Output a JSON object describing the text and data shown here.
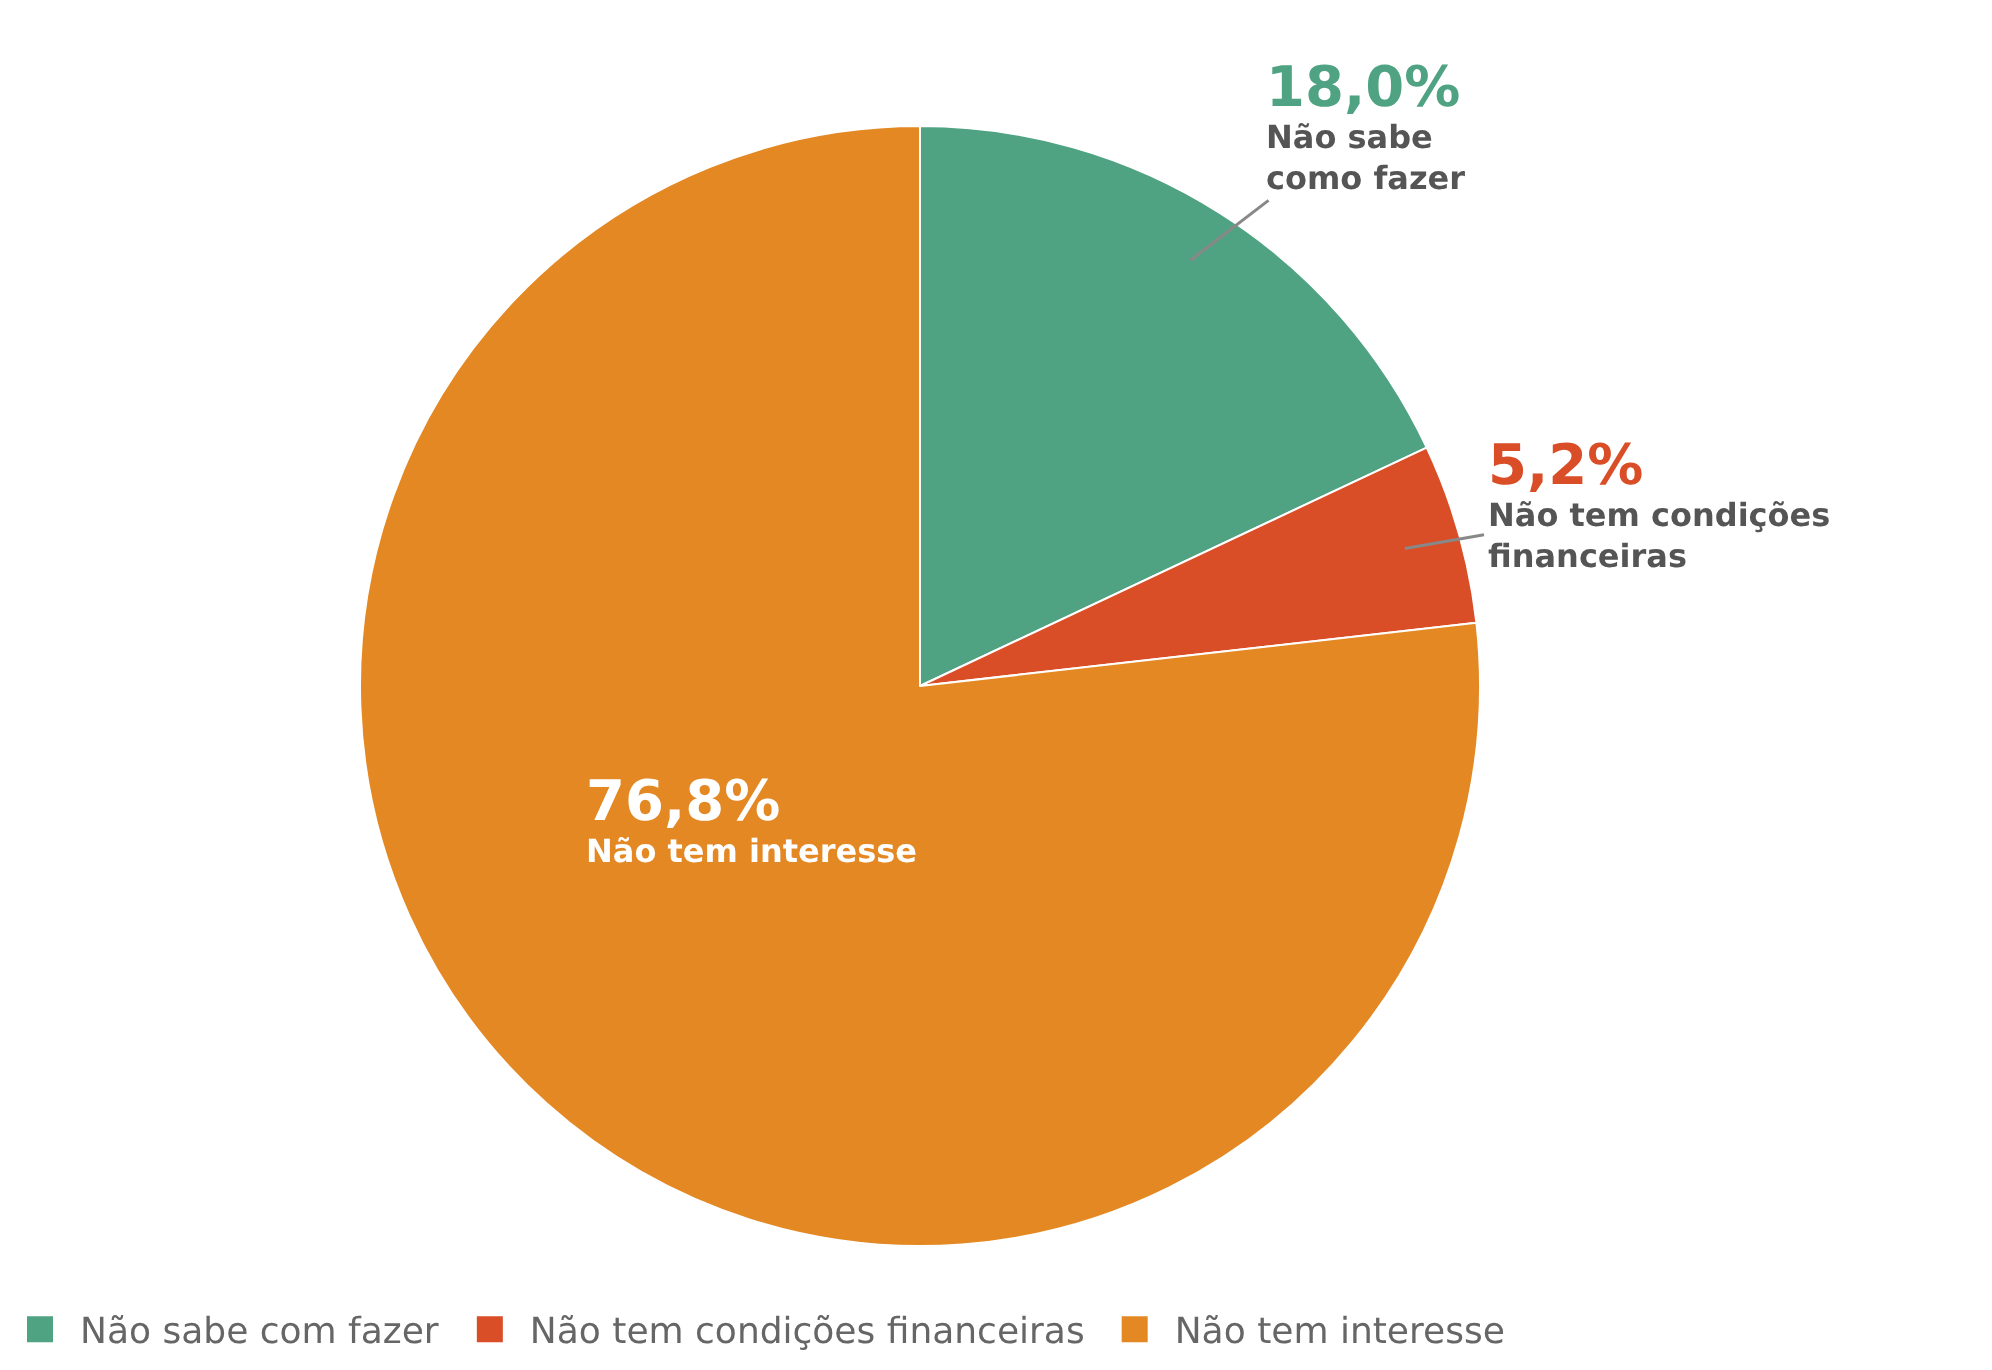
{
  "chart_data": {
    "type": "pie",
    "categories": [
      "Não sabe com fazer",
      "Não tem condições financeiras",
      "Não tem interesse"
    ],
    "values": [
      18.0,
      5.2,
      76.8
    ],
    "colors": [
      "#4fa382",
      "#d94d27",
      "#e38823"
    ],
    "value_labels": [
      "18,0%",
      "5,2%",
      "76,8%"
    ],
    "annotations": [
      "Não sabe\ncomo fazer",
      "Não tem condições\nfinanceiras",
      "Não tem interesse"
    ],
    "legend": "bottom left"
  }
}
